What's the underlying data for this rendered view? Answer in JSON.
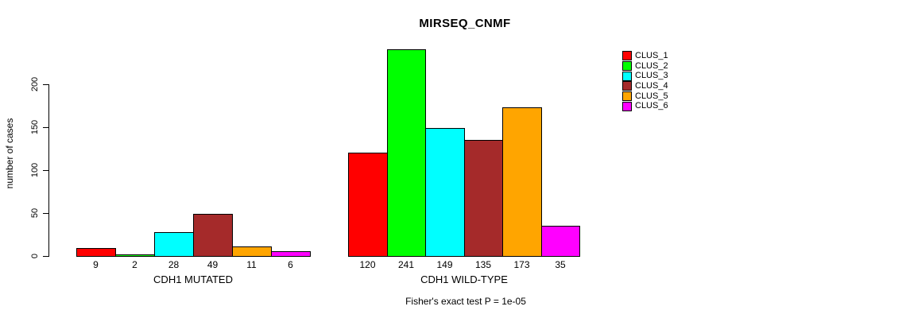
{
  "chart_data": {
    "type": "bar",
    "title": "MIRSEQ_CNMF",
    "ylabel": "number of cases",
    "ylim": [
      0,
      250
    ],
    "yticks": [
      0,
      50,
      100,
      150,
      200
    ],
    "grid": false,
    "legend_position": "right",
    "series_colors": [
      "#FF0000",
      "#00FF00",
      "#00FFFF",
      "#A52A2A",
      "#FFA500",
      "#FF00FF"
    ],
    "groups": [
      {
        "label": "CDH1 MUTATED",
        "values": [
          9,
          2,
          28,
          49,
          11,
          6
        ]
      },
      {
        "label": "CDH1 WILD-TYPE",
        "values": [
          120,
          241,
          149,
          135,
          173,
          35
        ]
      }
    ],
    "legend": [
      {
        "label": "CLUS_1",
        "color": "#FF0000"
      },
      {
        "label": "CLUS_2",
        "color": "#00FF00"
      },
      {
        "label": "CLUS_3",
        "color": "#00FFFF"
      },
      {
        "label": "CLUS_4",
        "color": "#A52A2A"
      },
      {
        "label": "CLUS_5",
        "color": "#FFA500"
      },
      {
        "label": "CLUS_6",
        "color": "#FF00FF"
      }
    ],
    "footnote": "Fisher's exact test P = 1e-05"
  }
}
